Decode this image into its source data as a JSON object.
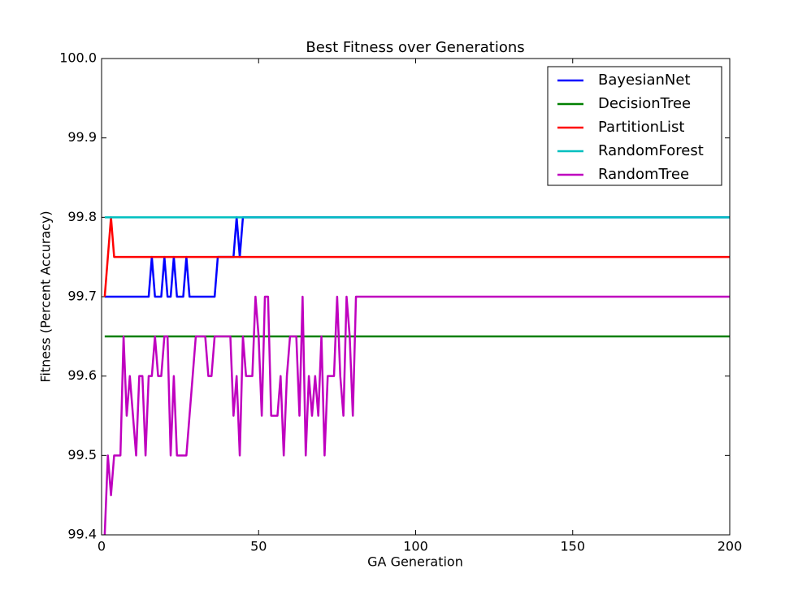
{
  "chart_data": {
    "type": "line",
    "title": "Best Fitness over Generations",
    "x_label": "GA Generation",
    "y_label": "Fitness (Percent Accuracy)",
    "xlim": [
      0,
      200
    ],
    "xticks": [
      0,
      50,
      100,
      150,
      200
    ],
    "ylim": [
      99.4,
      100
    ],
    "yticks": [
      99.4,
      99.5,
      99.6,
      99.7,
      99.8,
      99.9,
      {
        "value": 100,
        "label": "100.0"
      }
    ],
    "legend": "upper right",
    "series": [
      {
        "name": "BayesianNet",
        "color": "#0000ff",
        "x": [
          1,
          15,
          16,
          17,
          19,
          20,
          21,
          22,
          23,
          24,
          26,
          27,
          28,
          36,
          37,
          42,
          43,
          44,
          45,
          200
        ],
        "values": [
          99.7,
          99.7,
          99.75,
          99.7,
          99.7,
          99.75,
          99.7,
          99.7,
          99.75,
          99.7,
          99.7,
          99.75,
          99.7,
          99.7,
          99.75,
          99.75,
          99.8,
          99.75,
          99.8,
          99.8
        ]
      },
      {
        "name": "DecisionTree",
        "color": "#008000",
        "x": [
          1,
          200
        ],
        "values": [
          99.65,
          99.65
        ]
      },
      {
        "name": "PartitionList",
        "color": "#ff0000",
        "x": [
          1,
          3,
          4,
          200
        ],
        "values": [
          99.7,
          99.8,
          99.75,
          99.75
        ]
      },
      {
        "name": "RandomForest",
        "color": "#00bfbf",
        "x": [
          1,
          200
        ],
        "values": [
          99.8,
          99.8
        ]
      },
      {
        "name": "RandomTree",
        "color": "#bf00bf",
        "x": [
          1,
          2,
          3,
          4,
          6,
          7,
          8,
          9,
          11,
          12,
          13,
          14,
          15,
          16,
          17,
          18,
          19,
          20,
          21,
          22,
          23,
          24,
          27,
          28,
          30,
          33,
          34,
          35,
          36,
          41,
          42,
          43,
          44,
          45,
          46,
          48,
          49,
          50,
          51,
          52,
          53,
          54,
          56,
          57,
          58,
          59,
          60,
          62,
          63,
          64,
          65,
          66,
          67,
          68,
          69,
          70,
          71,
          72,
          74,
          75,
          76,
          77,
          78,
          79,
          80,
          81,
          200
        ],
        "values": [
          99.4,
          99.5,
          99.45,
          99.5,
          99.5,
          99.65,
          99.55,
          99.6,
          99.5,
          99.6,
          99.6,
          99.5,
          99.6,
          99.6,
          99.65,
          99.6,
          99.6,
          99.65,
          99.65,
          99.5,
          99.6,
          99.5,
          99.5,
          99.55,
          99.65,
          99.65,
          99.6,
          99.6,
          99.65,
          99.65,
          99.55,
          99.6,
          99.5,
          99.65,
          99.6,
          99.6,
          99.7,
          99.65,
          99.55,
          99.7,
          99.7,
          99.55,
          99.55,
          99.6,
          99.5,
          99.6,
          99.65,
          99.65,
          99.55,
          99.7,
          99.5,
          99.6,
          99.55,
          99.6,
          99.55,
          99.65,
          99.5,
          99.6,
          99.6,
          99.7,
          99.6,
          99.55,
          99.7,
          99.65,
          99.55,
          99.7,
          99.7
        ]
      }
    ]
  }
}
